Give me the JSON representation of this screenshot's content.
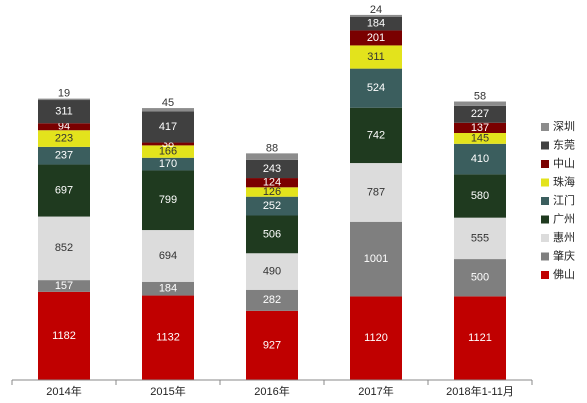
{
  "chart_data": {
    "type": "stacked_bar",
    "categories": [
      "2014年",
      "2015年",
      "2016年",
      "2017年",
      "2018年1-11月"
    ],
    "ylim": [
      0,
      5000
    ],
    "series": [
      {
        "name": "佛山",
        "color": "#c00000",
        "values": [
          1182,
          1132,
          927,
          1120,
          1121
        ]
      },
      {
        "name": "肇庆",
        "color": "#7f7f7f",
        "values": [
          157,
          184,
          282,
          1001,
          500
        ]
      },
      {
        "name": "惠州",
        "color": "#dcdcdc",
        "values": [
          852,
          694,
          490,
          787,
          555
        ]
      },
      {
        "name": "广州",
        "color": "#1f3a1f",
        "values": [
          697,
          799,
          506,
          742,
          580
        ]
      },
      {
        "name": "江门",
        "color": "#3b5e5e",
        "values": [
          237,
          170,
          252,
          524,
          410
        ]
      },
      {
        "name": "珠海",
        "color": "#e3e31c",
        "values": [
          223,
          166,
          126,
          311,
          145
        ]
      },
      {
        "name": "中山",
        "color": "#7a0000",
        "values": [
          94,
          38,
          124,
          201,
          137
        ]
      },
      {
        "name": "东莞",
        "color": "#404040",
        "values": [
          311,
          417,
          243,
          184,
          227
        ]
      },
      {
        "name": "深圳",
        "color": "#8c8c8c",
        "values": [
          19,
          45,
          88,
          24,
          58
        ]
      }
    ]
  }
}
